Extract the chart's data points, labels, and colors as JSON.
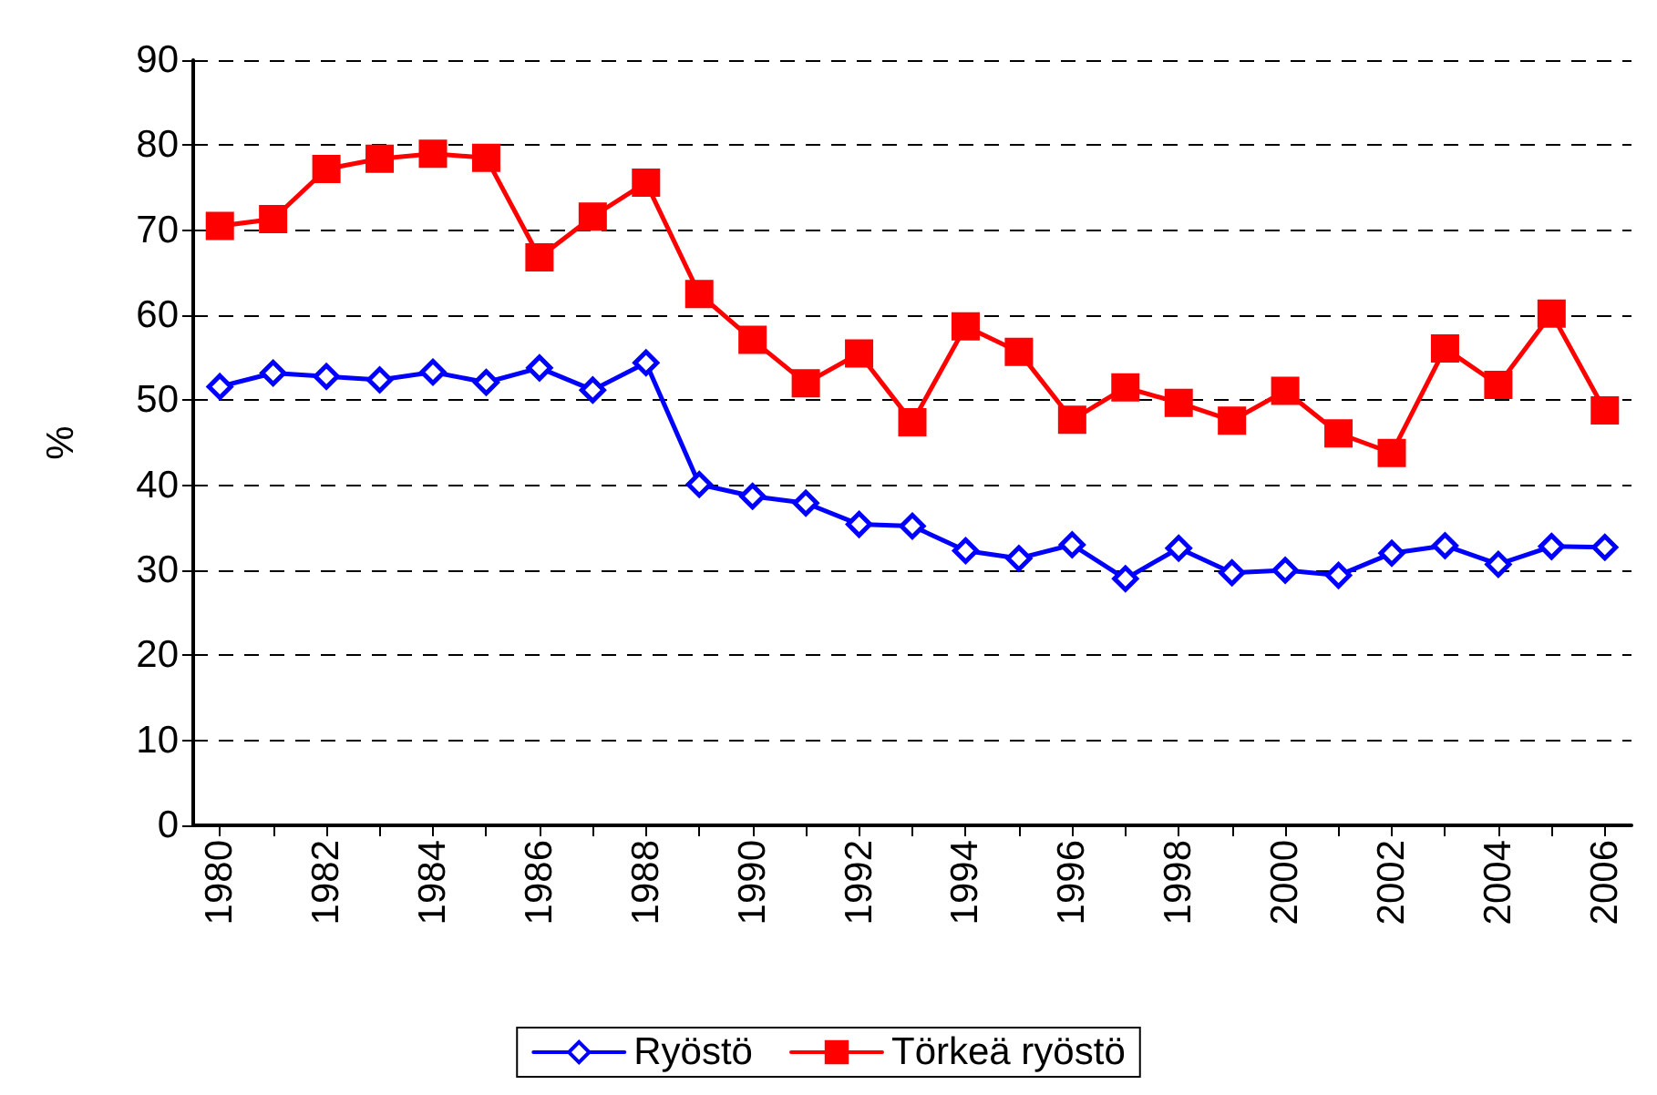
{
  "chart_data": {
    "type": "line",
    "ylabel": "%",
    "categories": [
      "1980",
      null,
      "1982",
      null,
      "1984",
      null,
      "1986",
      null,
      "1988",
      null,
      "1990",
      null,
      "1992",
      null,
      "1994",
      null,
      "1996",
      null,
      "1998",
      null,
      "2000",
      null,
      "2002",
      null,
      "2004",
      null,
      "2006"
    ],
    "series": [
      {
        "name": "Ryöstö",
        "color": "#0000ff",
        "marker": "diamond",
        "values": [
          51.6,
          53.2,
          52.8,
          52.4,
          53.3,
          52.1,
          53.8,
          51.2,
          54.4,
          40.1,
          38.7,
          37.9,
          35.4,
          35.2,
          32.3,
          31.4,
          33.0,
          29.0,
          32.6,
          29.7,
          30.0,
          29.4,
          32.0,
          32.9,
          30.7,
          32.8,
          32.7
        ]
      },
      {
        "name": "Törkeä ryöstö",
        "color": "#ff0000",
        "marker": "square",
        "values": [
          70.5,
          71.3,
          77.2,
          78.4,
          79.0,
          78.5,
          66.8,
          71.6,
          75.6,
          62.5,
          57.1,
          52.0,
          55.5,
          47.4,
          58.7,
          55.7,
          47.7,
          51.5,
          49.7,
          47.6,
          51.1,
          46.1,
          43.8,
          56.1,
          51.8,
          60.2,
          48.8
        ]
      }
    ],
    "ylim": [
      0,
      90
    ],
    "yticks": [
      0,
      10,
      20,
      30,
      40,
      50,
      60,
      70,
      80,
      90
    ],
    "grid": "y",
    "legend": "bottom",
    "line_style": "solid"
  }
}
